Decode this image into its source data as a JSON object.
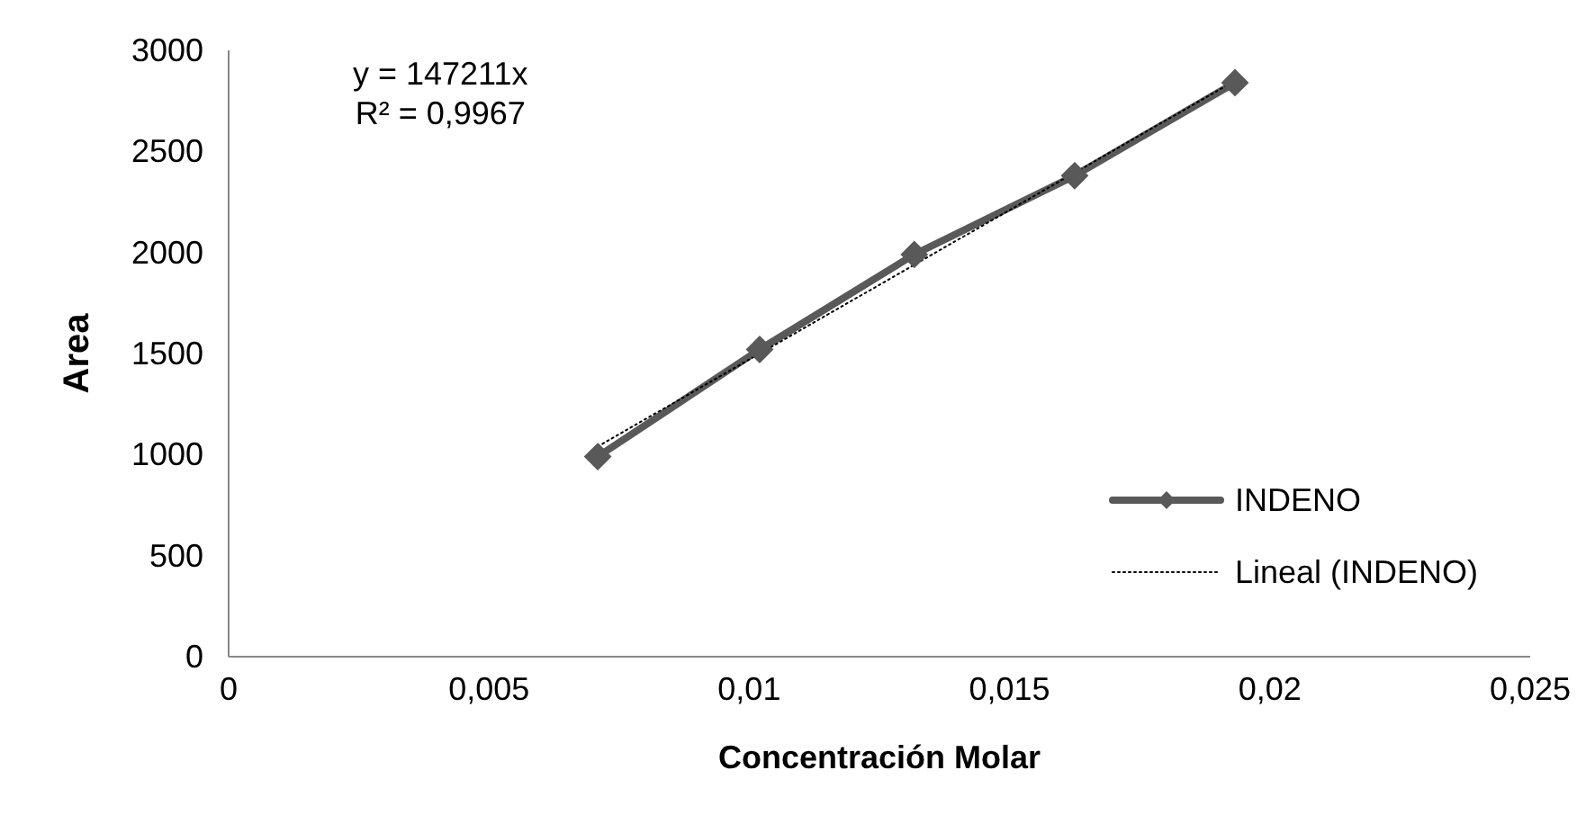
{
  "chart_data": {
    "type": "line",
    "xlabel": "Concentración Molar",
    "ylabel": "Area",
    "annotations": [
      "y = 147211x",
      "R² = 0,9967"
    ],
    "x": [
      0.00709,
      0.0102,
      0.01317,
      0.01625,
      0.01933
    ],
    "series": [
      {
        "name": "INDENO",
        "color": "#595959",
        "values": [
          990,
          1520,
          1990,
          2380,
          2840
        ],
        "marker": "diamond",
        "line_style": "solid"
      },
      {
        "name": "Lineal (INDENO)",
        "type": "line",
        "color": "#000000",
        "x": [
          0.00709,
          0.01933
        ],
        "values": [
          1040,
          2850
        ],
        "marker": "none",
        "line_style": "dotted"
      }
    ],
    "xlim": [
      0,
      0.025
    ],
    "xticks": [
      0,
      {
        "value": 0.005,
        "label": "0,005"
      },
      {
        "value": 0.01,
        "label": "0,01"
      },
      {
        "value": 0.015,
        "label": "0,015"
      },
      {
        "value": 0.02,
        "label": "0,02"
      },
      {
        "value": 0.025,
        "label": "0,025"
      }
    ],
    "ylim": [
      0,
      3000
    ],
    "yticks": [
      0,
      500,
      1000,
      1500,
      2000,
      2500,
      3000
    ],
    "grid": false,
    "legend": "right"
  }
}
